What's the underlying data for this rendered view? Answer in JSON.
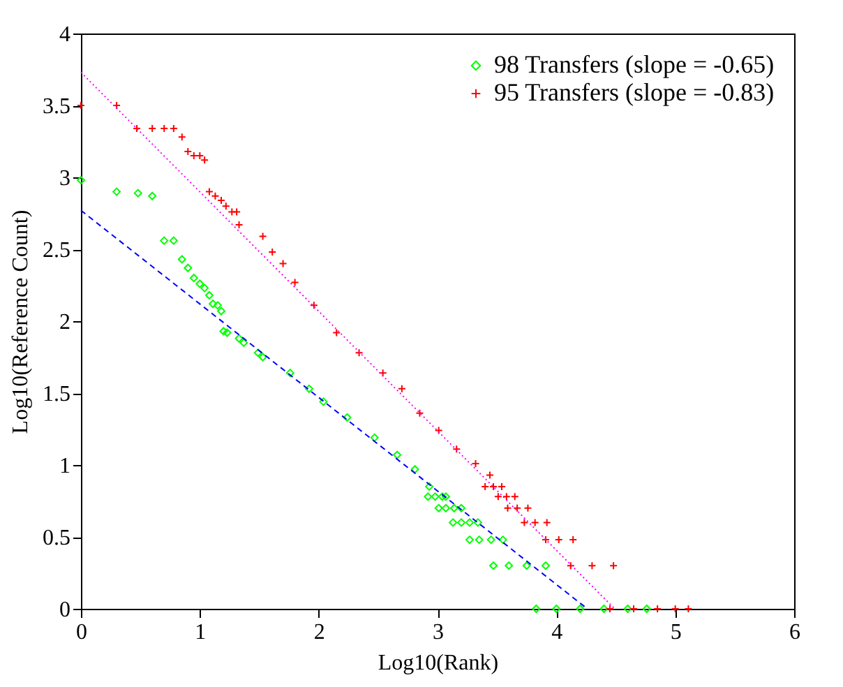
{
  "chart_data": {
    "type": "scatter",
    "xlabel": "Log10(Rank)",
    "ylabel": "Log10(Reference Count)",
    "xlim": [
      0,
      6
    ],
    "ylim": [
      0,
      4
    ],
    "xticks": [
      0,
      1,
      2,
      3,
      4,
      5,
      6
    ],
    "yticks": [
      0,
      0.5,
      1,
      1.5,
      2,
      2.5,
      3,
      3.5,
      4
    ],
    "grid": false,
    "legend": "top right",
    "series": [
      {
        "name": "98 Transfers (slope = -0.65)",
        "color": "#00ff00",
        "marker": "diamond",
        "x": [
          0,
          0.3,
          0.48,
          0.6,
          0.7,
          0.78,
          0.85,
          0.9,
          0.95,
          1.0,
          1.04,
          1.08,
          1.11,
          1.15,
          1.18,
          1.2,
          1.23,
          1.33,
          1.37,
          1.49,
          1.53,
          1.76,
          1.92,
          2.04,
          2.24,
          2.47,
          2.66,
          2.81,
          2.93,
          2.92,
          2.98,
          3.04,
          3.07,
          3.01,
          3.07,
          3.14,
          3.2,
          3.13,
          3.2,
          3.27,
          3.34,
          3.27,
          3.35,
          3.45,
          3.55,
          3.47,
          3.6,
          3.75,
          3.91,
          3.83,
          4.0,
          4.2,
          4.4,
          4.6,
          4.76
        ],
        "values": [
          2.98,
          2.9,
          2.89,
          2.87,
          2.56,
          2.56,
          2.43,
          2.37,
          2.3,
          2.26,
          2.23,
          2.18,
          2.12,
          2.11,
          2.07,
          1.93,
          1.92,
          1.88,
          1.85,
          1.78,
          1.75,
          1.64,
          1.53,
          1.44,
          1.33,
          1.19,
          1.07,
          0.97,
          0.85,
          0.78,
          0.78,
          0.78,
          0.78,
          0.7,
          0.7,
          0.7,
          0.7,
          0.6,
          0.6,
          0.6,
          0.6,
          0.48,
          0.48,
          0.48,
          0.48,
          0.3,
          0.3,
          0.3,
          0.3,
          0,
          0,
          0,
          0,
          0,
          0
        ]
      },
      {
        "name": "95 Transfers (slope = -0.83)",
        "color": "#ff0000",
        "marker": "cross",
        "x": [
          0,
          0.3,
          0.47,
          0.6,
          0.7,
          0.78,
          0.85,
          0.9,
          0.95,
          1.0,
          1.04,
          1.08,
          1.13,
          1.18,
          1.22,
          1.27,
          1.31,
          1.33,
          1.53,
          1.61,
          1.7,
          1.8,
          1.96,
          2.15,
          2.34,
          2.54,
          2.7,
          2.85,
          3.01,
          3.16,
          3.32,
          3.44,
          3.4,
          3.47,
          3.54,
          3.51,
          3.58,
          3.65,
          3.59,
          3.67,
          3.76,
          3.73,
          3.82,
          3.92,
          3.91,
          4.02,
          4.14,
          4.12,
          4.3,
          4.48,
          4.45,
          4.65,
          4.85,
          5.0,
          5.11
        ],
        "values": [
          3.5,
          3.5,
          3.34,
          3.34,
          3.34,
          3.34,
          3.28,
          3.18,
          3.15,
          3.15,
          3.12,
          2.9,
          2.87,
          2.84,
          2.8,
          2.76,
          2.76,
          2.67,
          2.59,
          2.48,
          2.4,
          2.27,
          2.11,
          1.92,
          1.78,
          1.64,
          1.53,
          1.36,
          1.24,
          1.11,
          1.01,
          0.93,
          0.85,
          0.85,
          0.85,
          0.78,
          0.78,
          0.78,
          0.7,
          0.7,
          0.7,
          0.6,
          0.6,
          0.6,
          0.48,
          0.48,
          0.48,
          0.3,
          0.3,
          0.3,
          0,
          0,
          0,
          0,
          0
        ]
      },
      {
        "type": "line",
        "color": "#0000ff",
        "line_style": "dashed",
        "x": [
          0,
          4.26
        ],
        "values": [
          2.77,
          0
        ]
      },
      {
        "type": "line",
        "color": "#ff00ff",
        "line_style": "dotted",
        "x": [
          0,
          4.49
        ],
        "values": [
          3.73,
          0
        ]
      }
    ]
  }
}
